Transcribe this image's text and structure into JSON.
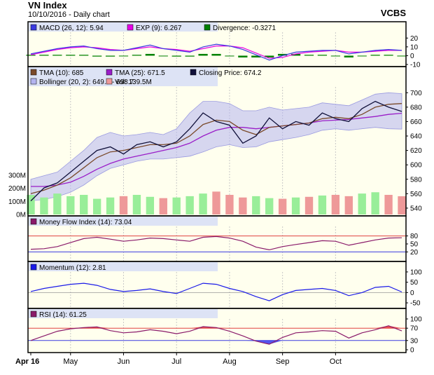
{
  "header": {
    "title": "VN Index",
    "subtitle": "10/10/2016 - Daily chart",
    "broker": "VCBS"
  },
  "colors": {
    "frame": "#000000",
    "panel_bg": "#ffffee",
    "legend_bg": "#dde3f5",
    "grid": "#c8c8c8",
    "macd": "#3a3ae0",
    "signal": "#e600e6",
    "divergence": "#008000",
    "tma10": "#7a4a2a",
    "tma25": "#9a1ec8",
    "close": "#10103a",
    "bollinger": "#b4b4f0",
    "vol_up": "#99ee99",
    "vol_down": "#ee9999",
    "mfi": "#8a1a6a",
    "momentum": "#1a1ae8",
    "rsi": "#8a1a6a",
    "band_upper": "#e04040",
    "band_lower": "#3a3ae0",
    "rsi_over": "#ee5555",
    "rsi_under": "#5555ee"
  },
  "chart_data": [
    {
      "type": "line",
      "panel": "macd",
      "legend": [
        "MACD (26, 12): 5.94",
        "EXP (9): 6.267",
        "Divergence: -0.3271"
      ],
      "y_ticks": [
        "20",
        "10",
        "0",
        "-10"
      ],
      "ylim": [
        -10,
        25
      ],
      "series": [
        {
          "name": "MACD (26, 12)",
          "values": [
            2,
            5,
            8,
            10,
            11,
            8,
            6,
            6,
            9,
            12,
            8,
            6,
            4,
            10,
            13,
            11,
            7,
            1,
            -5,
            0,
            4,
            5,
            6,
            6,
            2,
            4,
            6,
            7,
            6
          ]
        },
        {
          "name": "EXP (9)",
          "values": [
            1,
            4,
            7,
            9,
            10,
            9,
            7,
            6,
            8,
            10,
            8,
            7,
            5,
            8,
            11,
            11,
            9,
            3,
            -3,
            -2,
            2,
            4,
            5,
            6,
            4,
            4,
            5,
            6,
            6
          ]
        },
        {
          "name": "Divergence",
          "values": [
            1,
            1,
            1,
            1,
            1,
            -1,
            -1,
            0,
            1,
            2,
            0,
            -1,
            -1,
            2,
            2,
            0,
            -2,
            -2,
            -2,
            2,
            2,
            1,
            1,
            0,
            -2,
            0,
            1,
            1,
            0
          ]
        }
      ]
    },
    {
      "type": "line",
      "panel": "price",
      "legend": [
        "TMA (10): 685",
        "TMA (25): 671.5",
        "Closing Price: 674.2",
        "Bollinger (20, 2): 649.5 - 698.7",
        "Vol: 139.5M"
      ],
      "y_ticks": [
        "700",
        "680",
        "660",
        "640",
        "620",
        "600",
        "580",
        "560",
        "540"
      ],
      "ylim": [
        537,
        710
      ],
      "vol_ticks": [
        "300M",
        "200M",
        "100M",
        "0M"
      ],
      "series": [
        {
          "name": "Closing Price",
          "values": [
            550,
            568,
            575,
            590,
            605,
            620,
            625,
            615,
            628,
            632,
            625,
            632,
            650,
            672,
            660,
            655,
            630,
            640,
            665,
            650,
            660,
            655,
            672,
            664,
            660,
            678,
            688,
            680,
            674
          ]
        },
        {
          "name": "TMA (10)",
          "values": [
            560,
            565,
            572,
            582,
            596,
            610,
            618,
            620,
            624,
            628,
            628,
            630,
            640,
            656,
            662,
            660,
            648,
            642,
            652,
            654,
            656,
            658,
            664,
            666,
            664,
            670,
            680,
            684,
            685
          ]
        },
        {
          "name": "TMA (25)",
          "values": [
            570,
            570,
            572,
            576,
            584,
            594,
            602,
            608,
            612,
            616,
            620,
            624,
            630,
            640,
            648,
            652,
            652,
            650,
            652,
            654,
            656,
            658,
            661,
            662,
            663,
            665,
            667,
            670,
            671.5
          ]
        },
        {
          "name": "Bollinger upper",
          "values": [
            580,
            585,
            590,
            605,
            620,
            638,
            645,
            640,
            642,
            645,
            642,
            650,
            672,
            688,
            688,
            685,
            675,
            675,
            680,
            676,
            678,
            680,
            686,
            684,
            682,
            690,
            698,
            700,
            698.7
          ]
        },
        {
          "name": "Bollinger lower",
          "values": [
            550,
            552,
            556,
            562,
            572,
            585,
            595,
            600,
            605,
            608,
            608,
            610,
            612,
            618,
            625,
            628,
            624,
            625,
            632,
            635,
            638,
            642,
            648,
            650,
            648,
            650,
            652,
            650,
            649.5
          ]
        },
        {
          "name": "Vol",
          "values": [
            150,
            130,
            160,
            140,
            150,
            120,
            130,
            140,
            150,
            135,
            125,
            130,
            140,
            160,
            175,
            150,
            130,
            140,
            125,
            120,
            130,
            135,
            145,
            150,
            140,
            160,
            170,
            150,
            139.5
          ]
        }
      ]
    },
    {
      "type": "line",
      "panel": "mfi",
      "legend": [
        "Money Flow Index (14): 73.04"
      ],
      "y_ticks": [
        "80",
        "50",
        "20"
      ],
      "ylim": [
        0,
        100
      ],
      "bands": [
        80,
        20
      ],
      "series": [
        {
          "name": "Money Flow Index (14)",
          "values": [
            30,
            32,
            40,
            55,
            70,
            75,
            68,
            60,
            65,
            72,
            70,
            65,
            60,
            75,
            78,
            72,
            60,
            38,
            28,
            40,
            48,
            55,
            62,
            60,
            45,
            55,
            65,
            72,
            73.04
          ]
        }
      ]
    },
    {
      "type": "line",
      "panel": "momentum",
      "legend": [
        "Momentum (12): 2.81"
      ],
      "y_ticks": [
        "100",
        "50",
        "0",
        "-50"
      ],
      "ylim": [
        -60,
        110
      ],
      "series": [
        {
          "name": "Momentum (12)",
          "values": [
            5,
            20,
            30,
            40,
            45,
            35,
            15,
            5,
            10,
            18,
            5,
            -5,
            20,
            45,
            40,
            20,
            5,
            -20,
            -40,
            -10,
            10,
            15,
            20,
            10,
            -15,
            0,
            25,
            30,
            2.81
          ]
        }
      ]
    },
    {
      "type": "line",
      "panel": "rsi",
      "legend": [
        "RSI (14): 61.25"
      ],
      "y_ticks": [
        "100",
        "70",
        "30",
        "0"
      ],
      "ylim": [
        0,
        100
      ],
      "bands": [
        70,
        30
      ],
      "series": [
        {
          "name": "RSI (14)",
          "values": [
            30,
            45,
            60,
            68,
            72,
            74,
            62,
            55,
            58,
            65,
            60,
            52,
            60,
            75,
            72,
            60,
            45,
            28,
            18,
            40,
            55,
            58,
            62,
            60,
            38,
            55,
            65,
            78,
            61.25
          ]
        }
      ]
    }
  ],
  "x_ticks": [
    "Apr 16",
    "May",
    "Jun",
    "Jul",
    "Aug",
    "Sep",
    "Oct"
  ],
  "x_tick_index": [
    0,
    3,
    7,
    11,
    15,
    19,
    23
  ]
}
